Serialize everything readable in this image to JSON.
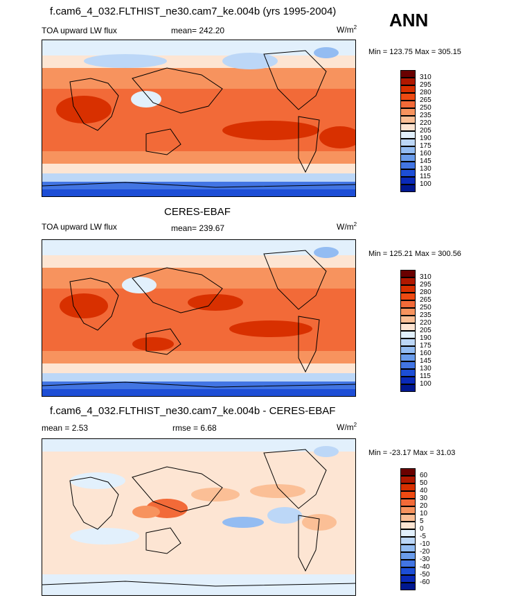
{
  "season": "ANN",
  "panels": [
    {
      "title": "f.cam6_4_032.FLTHIST_ne30.cam7_ke.004b (yrs 1995-2004)",
      "left_label": "TOA upward LW flux",
      "center_label": "mean= 242.20",
      "units": "W/m",
      "units_exp": "2",
      "minmax": "Min = 123.75 Max = 305.15",
      "levels": [
        "310",
        "295",
        "280",
        "265",
        "250",
        "235",
        "220",
        "205",
        "190",
        "175",
        "160",
        "145",
        "130",
        "115",
        "100"
      ],
      "colors": [
        "#6a0000",
        "#b01800",
        "#d83000",
        "#ee4a12",
        "#f26a38",
        "#f7935e",
        "#fbbf96",
        "#fde5d3",
        "#e2f0fc",
        "#bcd7f7",
        "#93bcf2",
        "#6a9ceb",
        "#4275e3",
        "#1d4ed6",
        "#0a2ab8",
        "#001890"
      ]
    },
    {
      "title": "CERES-EBAF",
      "left_label": "TOA upward LW flux",
      "center_label": "mean= 239.67",
      "units": "W/m",
      "units_exp": "2",
      "minmax": "Min = 125.21 Max = 300.56",
      "levels": [
        "310",
        "295",
        "280",
        "265",
        "250",
        "235",
        "220",
        "205",
        "190",
        "175",
        "160",
        "145",
        "130",
        "115",
        "100"
      ],
      "colors": [
        "#6a0000",
        "#b01800",
        "#d83000",
        "#ee4a12",
        "#f26a38",
        "#f7935e",
        "#fbbf96",
        "#fde5d3",
        "#e2f0fc",
        "#bcd7f7",
        "#93bcf2",
        "#6a9ceb",
        "#4275e3",
        "#1d4ed6",
        "#0a2ab8",
        "#001890"
      ]
    },
    {
      "title": "f.cam6_4_032.FLTHIST_ne30.cam7_ke.004b - CERES-EBAF",
      "left_label": "mean =   2.53",
      "center_label": "rmse =   6.68",
      "units": "W/m",
      "units_exp": "2",
      "minmax": "Min = -23.17 Max =  31.03",
      "levels": [
        "60",
        "50",
        "40",
        "30",
        "20",
        "10",
        "5",
        "0",
        "-5",
        "-10",
        "-20",
        "-30",
        "-40",
        "-50",
        "-60"
      ],
      "colors": [
        "#6a0000",
        "#b01800",
        "#d83000",
        "#ee4a12",
        "#f26a38",
        "#f7935e",
        "#fbbf96",
        "#fde5d3",
        "#e2f0fc",
        "#bcd7f7",
        "#93bcf2",
        "#6a9ceb",
        "#4275e3",
        "#1d4ed6",
        "#0a2ab8",
        "#001890"
      ]
    }
  ]
}
